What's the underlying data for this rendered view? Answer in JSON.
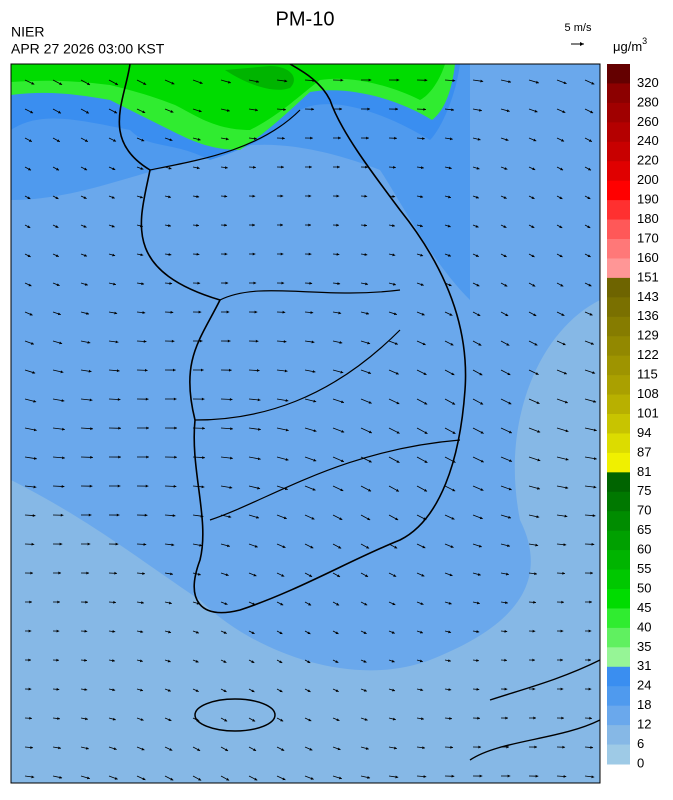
{
  "header": {
    "title": "PM-10",
    "agency": "NIER",
    "datetime": "APR 27 2026 03:00 KST",
    "wind_scale": "5 m/s"
  },
  "legend": {
    "unit": {
      "base": "μg/m",
      "exponent": "3"
    },
    "ticks": [
      320,
      280,
      260,
      240,
      220,
      200,
      190,
      180,
      170,
      160,
      151,
      143,
      136,
      129,
      122,
      115,
      108,
      101,
      94,
      87,
      81,
      75,
      70,
      65,
      60,
      55,
      50,
      45,
      40,
      35,
      31,
      24,
      18,
      12,
      6,
      0
    ],
    "colors": [
      "#640000",
      "#8c0000",
      "#a00000",
      "#b40000",
      "#c80000",
      "#e00000",
      "#ff0000",
      "#ff3030",
      "#ff5858",
      "#ff7878",
      "#ff9696",
      "#6e6400",
      "#7a7000",
      "#867c00",
      "#928800",
      "#9e9400",
      "#aaa000",
      "#b8b000",
      "#c8c400",
      "#dcdc00",
      "#f0f000",
      "#006400",
      "#007800",
      "#008c00",
      "#00a000",
      "#00b400",
      "#00c800",
      "#00dc00",
      "#30ec30",
      "#60f060",
      "#96f596",
      "#3a8ef0",
      "#4f9aee",
      "#6aa8ec",
      "#86b8e6",
      "#9ecae6"
    ]
  }
}
